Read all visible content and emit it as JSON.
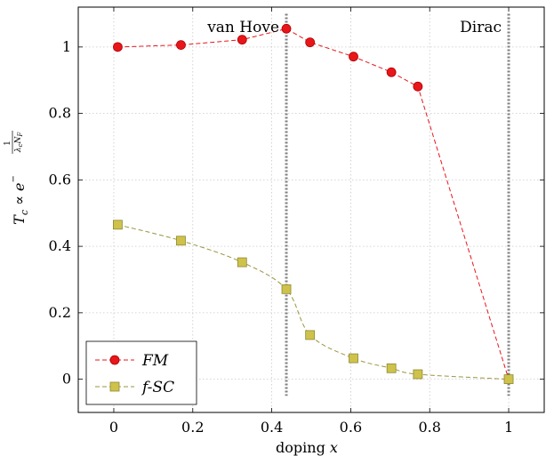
{
  "chart_data": {
    "type": "line",
    "xlabel": "doping x",
    "ylabel": "T_c ∝ e^(−1/(λ_c N_F))",
    "xlim": [
      -0.09,
      1.09
    ],
    "ylim": [
      -0.1,
      1.12
    ],
    "xticks": [
      0,
      0.2,
      0.4,
      0.6,
      0.8,
      1
    ],
    "xtick_labels": [
      "0",
      "0.2",
      "0.4",
      "0.6",
      "0.8",
      "1"
    ],
    "yticks": [
      0,
      0.2,
      0.4,
      0.6,
      0.8,
      1
    ],
    "ytick_labels": [
      "0",
      "0.2",
      "0.4",
      "0.6",
      "0.8",
      "1"
    ],
    "grid": true,
    "legend_position": "bottom-left",
    "series": [
      {
        "name": "FM",
        "color": "#e8161b",
        "marker": "circle",
        "line_style": "dashed",
        "x": [
          0.01,
          0.17,
          0.325,
          0.437,
          0.497,
          0.607,
          0.703,
          0.77,
          1.0
        ],
        "y": [
          1.0,
          1.006,
          1.022,
          1.055,
          1.014,
          0.971,
          0.924,
          0.881,
          0.0
        ]
      },
      {
        "name": "f-SC",
        "color": "#cfc24a",
        "line_color": "#9a963e",
        "marker": "square",
        "line_style": "dashed",
        "x": [
          0.01,
          0.17,
          0.325,
          0.437,
          0.497,
          0.607,
          0.703,
          0.77,
          1.0
        ],
        "y": [
          0.465,
          0.417,
          0.352,
          0.271,
          0.133,
          0.063,
          0.033,
          0.015,
          0.0
        ]
      }
    ],
    "annotations": [
      {
        "text": "van Hove",
        "x": 0.437
      },
      {
        "text": "Dirac",
        "x": 1.0
      }
    ]
  }
}
